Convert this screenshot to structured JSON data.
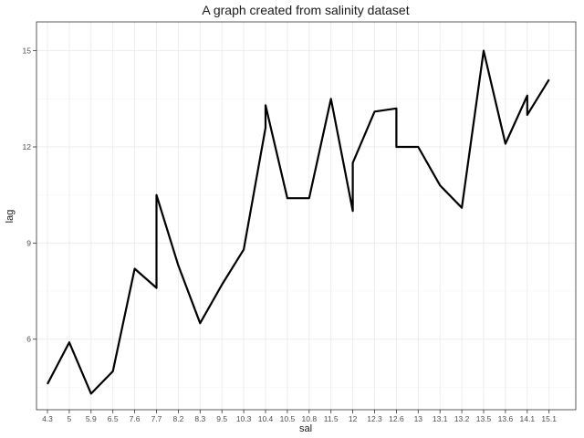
{
  "chart_data": {
    "type": "line",
    "title": "A graph created from salinity dataset",
    "xlabel": "sal",
    "ylabel": "lag",
    "categories": [
      "4.3",
      "5",
      "5.9",
      "6.5",
      "7.6",
      "7.7",
      "8.2",
      "8.3",
      "9.5",
      "10.3",
      "10.4",
      "10.5",
      "10.8",
      "11.5",
      "12",
      "12.3",
      "12.6",
      "13",
      "13.1",
      "13.2",
      "13.5",
      "13.6",
      "14.1",
      "15.1"
    ],
    "ylim": [
      3.8,
      15.9
    ],
    "yticks": [
      6,
      9,
      12,
      15
    ],
    "grid": true,
    "points": [
      {
        "x": "4.3",
        "y": 4.6
      },
      {
        "x": "5",
        "y": 5.9
      },
      {
        "x": "5.9",
        "y": 4.3
      },
      {
        "x": "6.5",
        "y": 5.0
      },
      {
        "x": "7.6",
        "y": 8.2
      },
      {
        "x": "7.7",
        "y": 7.6
      },
      {
        "x": "7.7",
        "y": 10.5
      },
      {
        "x": "8.2",
        "y": 8.3
      },
      {
        "x": "8.3",
        "y": 6.5
      },
      {
        "x": "9.5",
        "y": 7.7
      },
      {
        "x": "10.3",
        "y": 8.8
      },
      {
        "x": "10.4",
        "y": 12.6
      },
      {
        "x": "10.4",
        "y": 13.3
      },
      {
        "x": "10.5",
        "y": 10.4
      },
      {
        "x": "10.8",
        "y": 10.4
      },
      {
        "x": "11.5",
        "y": 13.5
      },
      {
        "x": "12",
        "y": 10.0
      },
      {
        "x": "12",
        "y": 11.5
      },
      {
        "x": "12.3",
        "y": 13.1
      },
      {
        "x": "12.6",
        "y": 13.2
      },
      {
        "x": "12.6",
        "y": 12.0
      },
      {
        "x": "13",
        "y": 12.0
      },
      {
        "x": "13.1",
        "y": 10.8
      },
      {
        "x": "13.2",
        "y": 10.1
      },
      {
        "x": "13.5",
        "y": 15.0
      },
      {
        "x": "13.6",
        "y": 12.1
      },
      {
        "x": "14.1",
        "y": 13.6
      },
      {
        "x": "14.1",
        "y": 13.0
      },
      {
        "x": "15.1",
        "y": 14.1
      }
    ]
  }
}
